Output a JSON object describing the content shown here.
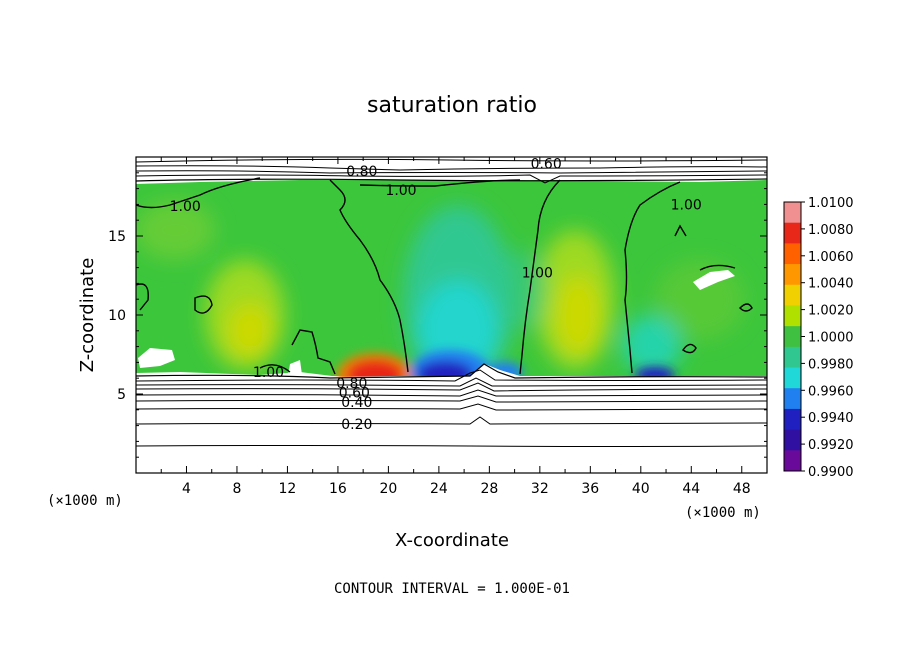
{
  "chart_data": {
    "type": "heatmap",
    "title": "saturation ratio",
    "xlabel": "X-coordinate",
    "ylabel": "Z-coordinate",
    "x_unit": "(×1000 m)",
    "x_unit_right": "(×1000 m)",
    "xlim": [
      0,
      50
    ],
    "ylim": [
      0,
      20
    ],
    "x_ticks": [
      4,
      8,
      12,
      16,
      20,
      24,
      28,
      32,
      36,
      40,
      44,
      48
    ],
    "y_ticks": [
      5,
      10,
      15
    ],
    "colorbar": {
      "levels": [
        "1.0100",
        "1.0080",
        "1.0060",
        "1.0040",
        "1.0020",
        "1.0000",
        "0.9980",
        "0.9960",
        "0.9940",
        "0.9920",
        "0.9900"
      ],
      "colors": [
        "#f08080",
        "#e83020",
        "#ff8000",
        "#f0c000",
        "#c8e000",
        "#40c040",
        "#30c890",
        "#20d8d8",
        "#2080f0",
        "#2020c0",
        "#6a0a9a"
      ]
    },
    "contour_labels": [
      {
        "text": "0.80",
        "x": 17.9,
        "z": 19.1
      },
      {
        "text": "0.60",
        "x": 32.5,
        "z": 19.6
      },
      {
        "text": "1.00",
        "x": 3.9,
        "z": 16.9
      },
      {
        "text": "1.00",
        "x": 21.0,
        "z": 17.9
      },
      {
        "text": "1.00",
        "x": 31.8,
        "z": 12.7
      },
      {
        "text": "1.00",
        "x": 43.6,
        "z": 17.0
      },
      {
        "text": "1.00",
        "x": 10.5,
        "z": 6.4
      },
      {
        "text": "0.80",
        "x": 17.1,
        "z": 5.7
      },
      {
        "text": "0.60",
        "x": 17.3,
        "z": 5.1
      },
      {
        "text": "0.40",
        "x": 17.5,
        "z": 4.5
      },
      {
        "text": "0.20",
        "x": 17.5,
        "z": 3.1
      }
    ],
    "footer": "CONTOUR INTERVAL = 1.000E-01"
  }
}
